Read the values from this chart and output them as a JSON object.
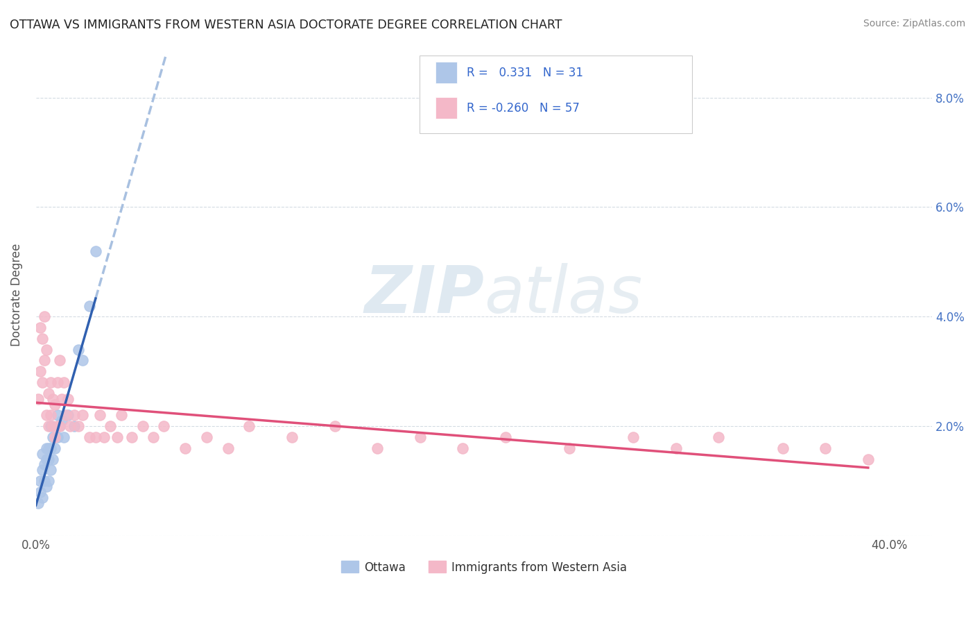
{
  "title": "OTTAWA VS IMMIGRANTS FROM WESTERN ASIA DOCTORATE DEGREE CORRELATION CHART",
  "source": "Source: ZipAtlas.com",
  "ylabel": "Doctorate Degree",
  "ytick_vals": [
    0.0,
    0.02,
    0.04,
    0.06,
    0.08
  ],
  "xtick_vals": [
    0.0,
    0.1,
    0.2,
    0.3,
    0.4
  ],
  "xtick_labels": [
    "0.0%",
    "",
    "",
    "",
    "40.0%"
  ],
  "xlim": [
    0.0,
    0.42
  ],
  "ylim": [
    0.0,
    0.088
  ],
  "legend_r_ottawa": "0.331",
  "legend_n_ottawa": "31",
  "legend_r_immigrants": "-0.260",
  "legend_n_immigrants": "57",
  "ottawa_color": "#aec6e8",
  "immigrants_color": "#f4b8c8",
  "trendline_ottawa_color": "#3060b0",
  "trendline_immigrants_color": "#e0507a",
  "trendline_ottawa_ext_color": "#a8c0e0",
  "watermark_color": "#d0dce8",
  "background_color": "#ffffff",
  "ottawa_x": [
    0.001,
    0.002,
    0.002,
    0.003,
    0.003,
    0.003,
    0.004,
    0.004,
    0.005,
    0.005,
    0.005,
    0.006,
    0.006,
    0.006,
    0.007,
    0.007,
    0.007,
    0.008,
    0.008,
    0.009,
    0.01,
    0.01,
    0.011,
    0.012,
    0.013,
    0.015,
    0.018,
    0.02,
    0.022,
    0.025,
    0.028
  ],
  "ottawa_y": [
    0.006,
    0.008,
    0.01,
    0.007,
    0.012,
    0.015,
    0.01,
    0.013,
    0.009,
    0.014,
    0.016,
    0.01,
    0.014,
    0.016,
    0.012,
    0.016,
    0.02,
    0.014,
    0.018,
    0.016,
    0.018,
    0.022,
    0.02,
    0.021,
    0.018,
    0.022,
    0.02,
    0.034,
    0.032,
    0.042,
    0.052
  ],
  "immigrants_x": [
    0.001,
    0.002,
    0.002,
    0.003,
    0.003,
    0.004,
    0.004,
    0.005,
    0.005,
    0.006,
    0.006,
    0.007,
    0.007,
    0.008,
    0.008,
    0.009,
    0.009,
    0.01,
    0.01,
    0.011,
    0.011,
    0.012,
    0.013,
    0.014,
    0.015,
    0.016,
    0.018,
    0.02,
    0.022,
    0.025,
    0.028,
    0.03,
    0.032,
    0.035,
    0.038,
    0.04,
    0.045,
    0.05,
    0.055,
    0.06,
    0.07,
    0.08,
    0.09,
    0.1,
    0.12,
    0.14,
    0.16,
    0.18,
    0.2,
    0.22,
    0.25,
    0.28,
    0.3,
    0.32,
    0.35,
    0.37,
    0.39
  ],
  "immigrants_y": [
    0.025,
    0.03,
    0.038,
    0.028,
    0.036,
    0.032,
    0.04,
    0.022,
    0.034,
    0.026,
    0.02,
    0.028,
    0.022,
    0.025,
    0.02,
    0.024,
    0.018,
    0.02,
    0.028,
    0.02,
    0.032,
    0.025,
    0.028,
    0.022,
    0.025,
    0.02,
    0.022,
    0.02,
    0.022,
    0.018,
    0.018,
    0.022,
    0.018,
    0.02,
    0.018,
    0.022,
    0.018,
    0.02,
    0.018,
    0.02,
    0.016,
    0.018,
    0.016,
    0.02,
    0.018,
    0.02,
    0.016,
    0.018,
    0.016,
    0.018,
    0.016,
    0.018,
    0.016,
    0.018,
    0.016,
    0.016,
    0.014
  ]
}
